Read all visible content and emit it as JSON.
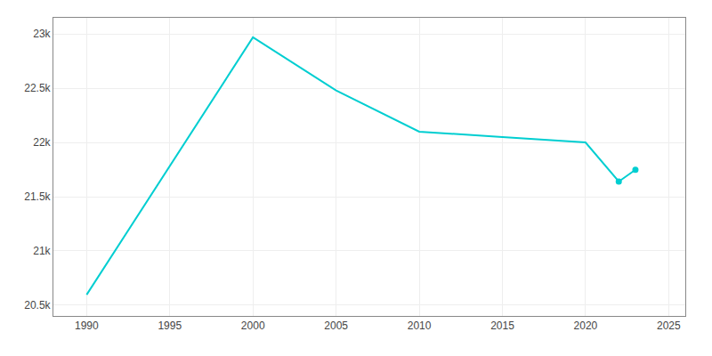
{
  "chart_data": {
    "type": "line",
    "x": [
      1990,
      2000,
      2005,
      2010,
      2015,
      2020,
      2022,
      2023
    ],
    "series": [
      {
        "color": "#00CED1",
        "line_style": "solid",
        "values": [
          20596,
          22970,
          22480,
          22100,
          22050,
          22000,
          21640,
          21748
        ]
      },
      {
        "color": "#00CED1",
        "line_style": "none",
        "marker": "circle",
        "values": [
          null,
          null,
          null,
          null,
          null,
          null,
          21640,
          21748
        ]
      }
    ],
    "xlim": [
      1988,
      2026
    ],
    "ylim": [
      20400,
      23150
    ],
    "xticks": [
      1990,
      1995,
      2000,
      2005,
      2010,
      2015,
      2020,
      2025
    ],
    "yticks": [
      {
        "value": 20500,
        "label": "20.5k"
      },
      {
        "value": 21000,
        "label": "21k"
      },
      {
        "value": 21500,
        "label": "21.5k"
      },
      {
        "value": 22000,
        "label": "22k"
      },
      {
        "value": 22500,
        "label": "22.5k"
      },
      {
        "value": 23000,
        "label": "23k"
      }
    ],
    "grid": true
  }
}
